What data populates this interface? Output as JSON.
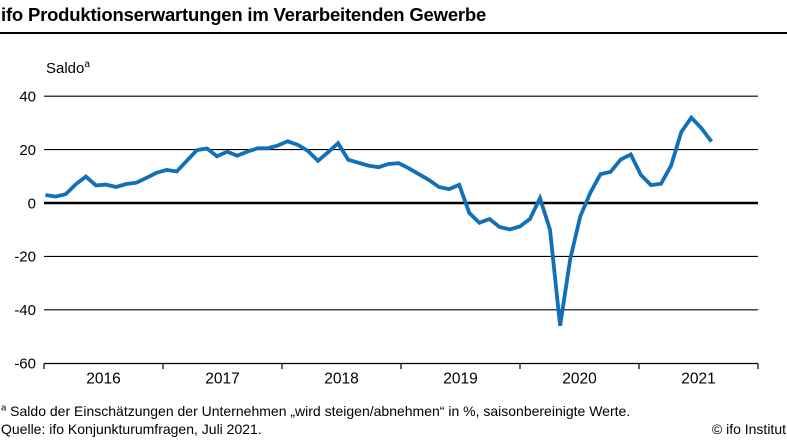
{
  "header": {
    "title": "ifo Produktionserwartungen im Verarbeitenden Gewerbe"
  },
  "chart_data": {
    "type": "line",
    "title": "ifo Produktionserwartungen im Verarbeitenden Gewerbe",
    "ylabel": "Saldo",
    "ylabel_superscript": "a",
    "x_start": "2016-01",
    "x_end": "2021-07",
    "frequency": "monthly",
    "x_tick_labels": [
      "2016",
      "2017",
      "2018",
      "2019",
      "2020",
      "2021"
    ],
    "y_ticks": [
      40,
      20,
      0,
      -20,
      -40,
      -60
    ],
    "ylim": [
      -60,
      44
    ],
    "grid": "horizontal",
    "legend": "none",
    "line_color": "#1170b8",
    "axis_color": "#000000",
    "values": [
      3.0,
      2.4,
      3.3,
      7.0,
      9.9,
      6.6,
      6.9,
      6.0,
      7.1,
      7.6,
      9.4,
      11.3,
      12.4,
      11.8,
      15.8,
      19.8,
      20.4,
      17.5,
      19.2,
      17.7,
      19.2,
      20.5,
      20.5,
      21.5,
      23.1,
      21.8,
      19.5,
      15.8,
      19.0,
      22.4,
      16.2,
      15.1,
      14.0,
      13.4,
      14.6,
      14.9,
      13.0,
      10.8,
      8.6,
      6.0,
      5.2,
      6.8,
      -3.7,
      -7.4,
      -6.0,
      -9.0,
      -9.9,
      -8.8,
      -6.0,
      1.8,
      -10.0,
      -46.0,
      -21.0,
      -5.0,
      3.9,
      10.8,
      11.7,
      16.3,
      18.2,
      10.5,
      6.7,
      7.2,
      14.0,
      26.5,
      32.0,
      28.0,
      23.0
    ]
  },
  "footnotes": {
    "note_superscript": "a",
    "note": " Saldo der Einschätzungen der Unternehmen „wird steigen/abnehmen“ in %, saisonbereinigte Werte.",
    "source": "Quelle: ifo Konjunkturumfragen, Juli 2021.",
    "copyright": "© ifo Institut"
  }
}
